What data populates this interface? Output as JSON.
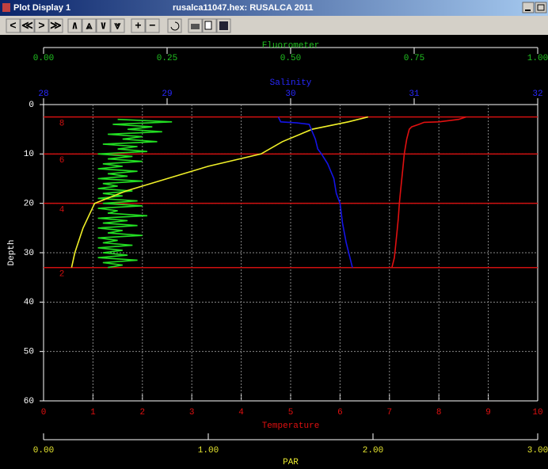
{
  "window": {
    "title": "Plot Display 1",
    "file": "rusalca11047.hex: RUSALCA 2011",
    "toolbar": [
      "<",
      "≪",
      ">",
      "≫",
      "∧",
      "⩓",
      "∨",
      "⩔",
      "+",
      "−"
    ]
  },
  "chart_data": {
    "type": "line",
    "y_label": "Depth",
    "ylim": [
      0,
      60
    ],
    "yticks": [
      0,
      10,
      20,
      30,
      40,
      50,
      60
    ],
    "grid": true,
    "axes": [
      {
        "label": "Fluorometer",
        "color": "#20c020",
        "lim": [
          0,
          1
        ],
        "position": "top-outer",
        "ticks": [
          {
            "value": 0,
            "label": "0.00"
          },
          {
            "value": 0.25,
            "label": "0.25"
          },
          {
            "value": 0.5,
            "label": "0.50"
          },
          {
            "value": 0.75,
            "label": "0.75"
          },
          {
            "value": 1,
            "label": "1.00"
          }
        ]
      },
      {
        "label": "Salinity",
        "color": "#2828ff",
        "lim": [
          28,
          32
        ],
        "position": "top-inner",
        "ticks": [
          28,
          29,
          30,
          31,
          32
        ]
      },
      {
        "label": "Temperature",
        "color": "#e01010",
        "lim": [
          0,
          10
        ],
        "position": "bottom-inner",
        "ticks": [
          0,
          1,
          2,
          3,
          4,
          5,
          6,
          7,
          8,
          9,
          10
        ],
        "grid": true
      },
      {
        "label": "PAR",
        "color": "#e8e830",
        "lim": [
          0,
          3
        ],
        "position": "bottom-outer",
        "ticks": [
          {
            "value": 0,
            "label": "0.00"
          },
          {
            "value": 1,
            "label": "1.00"
          },
          {
            "value": 2,
            "label": "2.00"
          },
          {
            "value": 3,
            "label": "3.00"
          }
        ]
      }
    ],
    "series": [
      {
        "axis": 0,
        "color": "#22dd22",
        "depth": [
          3,
          3.5,
          4,
          4.5,
          5,
          5.5,
          6,
          6.5,
          7,
          7.5,
          8,
          8.5,
          9,
          9.5,
          10,
          10.5,
          11,
          11.5,
          12,
          12.5,
          13,
          13.5,
          14,
          14.5,
          15,
          15.5,
          16,
          16.5,
          17,
          17.5,
          18,
          18.5,
          19,
          19.5,
          20,
          20.5,
          21,
          21.5,
          22,
          22.5,
          23,
          23.5,
          24,
          24.5,
          25,
          25.5,
          26,
          26.5,
          27,
          27.5,
          28,
          28.5,
          29,
          29.5,
          30,
          30.5,
          31,
          31.5,
          32,
          32.5,
          33
        ],
        "values": [
          0.15,
          0.26,
          0.14,
          0.22,
          0.17,
          0.24,
          0.13,
          0.2,
          0.16,
          0.23,
          0.12,
          0.19,
          0.15,
          0.21,
          0.11,
          0.18,
          0.13,
          0.2,
          0.12,
          0.16,
          0.11,
          0.19,
          0.13,
          0.17,
          0.11,
          0.2,
          0.12,
          0.15,
          0.11,
          0.18,
          0.12,
          0.16,
          0.11,
          0.19,
          0.12,
          0.2,
          0.11,
          0.15,
          0.13,
          0.21,
          0.11,
          0.17,
          0.12,
          0.19,
          0.11,
          0.16,
          0.13,
          0.2,
          0.11,
          0.15,
          0.12,
          0.18,
          0.11,
          0.16,
          0.12,
          0.17,
          0.11,
          0.19,
          0.12,
          0.16,
          0.13
        ]
      },
      {
        "axis": 3,
        "color": "#f0f028",
        "depth": [
          2.5,
          3.5,
          5,
          7.5,
          10,
          12.5,
          15,
          17.5,
          20,
          25,
          30,
          33
        ],
        "values": [
          1.97,
          1.85,
          1.63,
          1.45,
          1.32,
          1.0,
          0.75,
          0.5,
          0.31,
          0.24,
          0.19,
          0.17
        ]
      },
      {
        "axis": 1,
        "color": "#1414e6",
        "depth": [
          2.5,
          3.5,
          3.7,
          4,
          7,
          9,
          10,
          12,
          15,
          18,
          20,
          24,
          28,
          31,
          33
        ],
        "values": [
          29.9,
          29.92,
          30.05,
          30.15,
          30.2,
          30.22,
          30.25,
          30.3,
          30.35,
          30.37,
          30.4,
          30.42,
          30.45,
          30.48,
          30.5
        ]
      },
      {
        "axis": 2,
        "color": "#e01010",
        "depth": [
          2.5,
          3,
          3.5,
          3.6,
          4,
          4.5,
          5,
          7,
          10,
          12,
          15,
          18,
          20,
          23,
          26,
          29,
          31,
          33
        ],
        "values": [
          8.55,
          8.4,
          8.0,
          7.7,
          7.6,
          7.45,
          7.4,
          7.35,
          7.3,
          7.28,
          7.25,
          7.22,
          7.2,
          7.18,
          7.15,
          7.12,
          7.1,
          7.05
        ]
      }
    ],
    "bottles": [
      {
        "depth": 2.5,
        "label": "8"
      },
      {
        "depth": 10,
        "label": "6"
      },
      {
        "depth": 20,
        "label": "4"
      },
      {
        "depth": 33,
        "label": "2"
      }
    ],
    "bottle_color": "#d01010"
  }
}
